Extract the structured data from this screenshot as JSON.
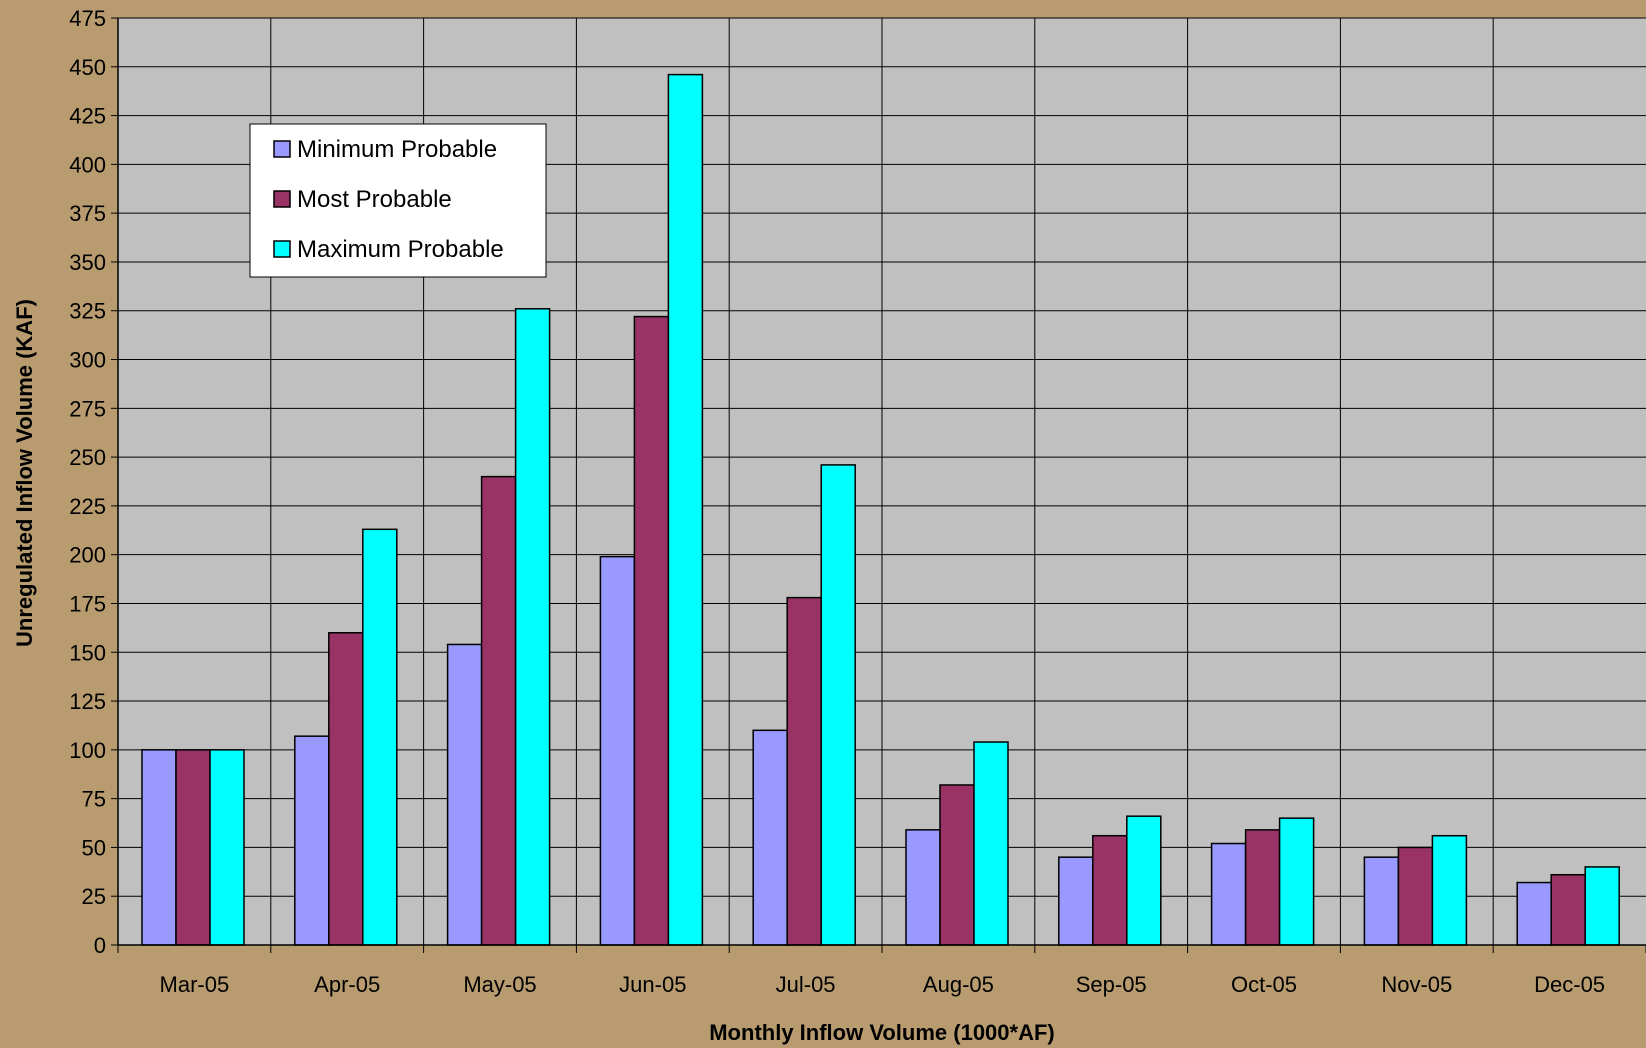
{
  "colors": {
    "background": "#b89c70",
    "plot_area": "#c0c0c0",
    "minimum": "#9999ff",
    "most": "#993366",
    "maximum": "#00ffff"
  },
  "chart_data": {
    "type": "bar",
    "title": "",
    "xlabel": "Monthly Inflow Volume (1000*AF)",
    "ylabel": "Unregulated Inflow Volume (KAF)",
    "ylim": [
      0,
      475
    ],
    "ytick_step": 25,
    "grid": true,
    "legend_position": "top-left",
    "categories": [
      "Mar-05",
      "Apr-05",
      "May-05",
      "Jun-05",
      "Jul-05",
      "Aug-05",
      "Sep-05",
      "Oct-05",
      "Nov-05",
      "Dec-05"
    ],
    "series": [
      {
        "name": "Minimum Probable",
        "color": "#9999ff",
        "values": [
          100,
          107,
          154,
          199,
          110,
          59,
          45,
          52,
          45,
          32
        ]
      },
      {
        "name": "Most Probable",
        "color": "#993366",
        "values": [
          100,
          160,
          240,
          322,
          178,
          82,
          56,
          59,
          50,
          36
        ]
      },
      {
        "name": "Maximum Probable",
        "color": "#00ffff",
        "values": [
          100,
          213,
          326,
          446,
          246,
          104,
          66,
          65,
          56,
          40
        ]
      }
    ]
  }
}
